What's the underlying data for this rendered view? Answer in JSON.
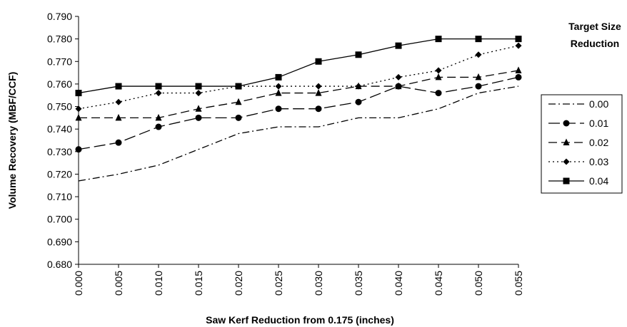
{
  "chart_data": {
    "type": "line",
    "title": "",
    "xlabel": "Saw Kerf Reduction from 0.175 (inches)",
    "ylabel": "Volume Recovery (MBF/CCF)",
    "x": [
      0.0,
      0.005,
      0.01,
      0.015,
      0.02,
      0.025,
      0.03,
      0.035,
      0.04,
      0.045,
      0.05,
      0.055
    ],
    "x_tick_labels": [
      "0.000",
      "0.005",
      "0.010",
      "0.015",
      "0.020",
      "0.025",
      "0.030",
      "0.035",
      "0.040",
      "0.045",
      "0.050",
      "0.055"
    ],
    "xlim": [
      0.0,
      0.055
    ],
    "ylim": [
      0.68,
      0.79
    ],
    "y_ticks": [
      0.68,
      0.69,
      0.7,
      0.71,
      0.72,
      0.73,
      0.74,
      0.75,
      0.76,
      0.77,
      0.78,
      0.79
    ],
    "y_tick_labels": [
      "0.680",
      "0.690",
      "0.700",
      "0.710",
      "0.720",
      "0.730",
      "0.740",
      "0.750",
      "0.760",
      "0.770",
      "0.780",
      "0.790"
    ],
    "grid": false,
    "legend": {
      "title_lines": [
        "Target Size",
        "Reduction"
      ],
      "placement": "right"
    },
    "series": [
      {
        "name": "0.00",
        "marker": "none",
        "dash": "dash-dot",
        "values": [
          0.717,
          0.72,
          0.724,
          0.731,
          0.738,
          0.741,
          0.741,
          0.745,
          0.745,
          0.749,
          0.756,
          0.759
        ]
      },
      {
        "name": "0.01",
        "marker": "circle",
        "dash": "long-dash",
        "values": [
          0.731,
          0.734,
          0.741,
          0.745,
          0.745,
          0.749,
          0.749,
          0.752,
          0.759,
          0.756,
          0.759,
          0.763
        ]
      },
      {
        "name": "0.02",
        "marker": "triangle",
        "dash": "dash",
        "values": [
          0.745,
          0.745,
          0.745,
          0.749,
          0.752,
          0.756,
          0.756,
          0.759,
          0.759,
          0.763,
          0.763,
          0.766
        ]
      },
      {
        "name": "0.03",
        "marker": "diamond",
        "dash": "dot",
        "values": [
          0.749,
          0.752,
          0.756,
          0.756,
          0.759,
          0.759,
          0.759,
          0.759,
          0.763,
          0.766,
          0.773,
          0.777
        ]
      },
      {
        "name": "0.04",
        "marker": "square",
        "dash": "solid",
        "values": [
          0.756,
          0.759,
          0.759,
          0.759,
          0.759,
          0.763,
          0.77,
          0.773,
          0.777,
          0.78,
          0.78,
          0.78
        ]
      }
    ]
  }
}
